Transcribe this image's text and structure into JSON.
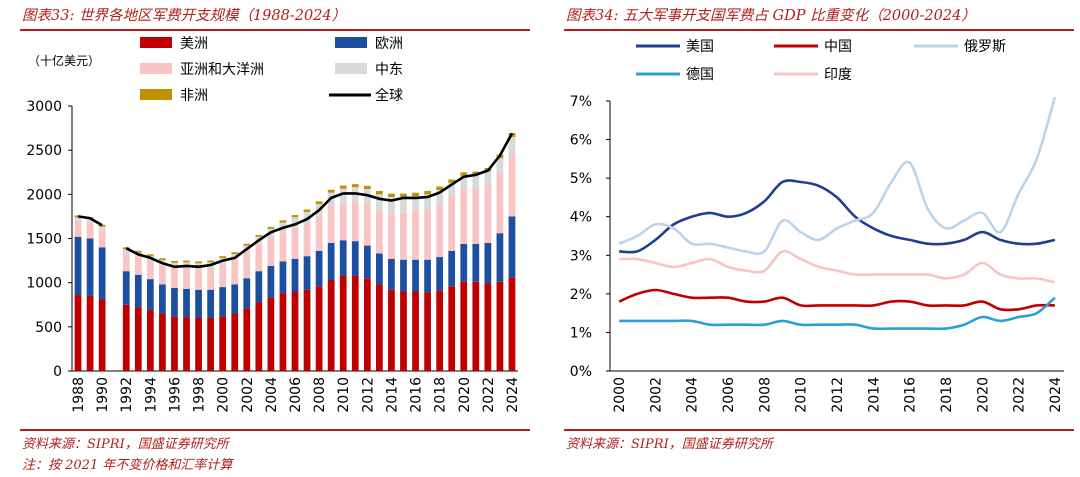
{
  "left": {
    "title": "图表33: 世界各地区军费开支规模（1988-2024）",
    "source": "资料来源：SIPRI，国盛证券研究所",
    "note": "注：按 2021 年不变价格和汇率计算"
  },
  "right": {
    "title": "图表34: 五大军事开支国军费占 GDP 比重变化（2000-2024）",
    "source": "资料来源：SIPRI，国盛证券研究所"
  },
  "colors": {
    "accent": "#b0201a",
    "americas": "#c00000",
    "europe": "#1c4fa0",
    "asia": "#f8c4c4",
    "middle_east": "#d9d9d9",
    "africa": "#bf9000",
    "world": "#000000",
    "usa": "#1f3f8f",
    "china": "#c00000",
    "russia": "#bcd4ea",
    "germany": "#2e9fd6",
    "india": "#f8c4c4"
  },
  "chart_data": [
    {
      "type": "bar",
      "stacked": true,
      "unit_label": "（十亿美元）",
      "ylim": [
        0,
        3000
      ],
      "yticks": [
        0,
        500,
        1000,
        1500,
        2000,
        2500,
        3000
      ],
      "categories": [
        1988,
        1989,
        1990,
        1991,
        1992,
        1993,
        1994,
        1995,
        1996,
        1997,
        1998,
        1999,
        2000,
        2001,
        2002,
        2003,
        2004,
        2005,
        2006,
        2007,
        2008,
        2009,
        2010,
        2011,
        2012,
        2013,
        2014,
        2015,
        2016,
        2017,
        2018,
        2019,
        2020,
        2021,
        2022,
        2023,
        2024
      ],
      "xtick_labels": [
        "1988",
        "1990",
        "1992",
        "1994",
        "1996",
        "1998",
        "2000",
        "2002",
        "2004",
        "2006",
        "2008",
        "2010",
        "2012",
        "2014",
        "2016",
        "2018",
        "2020",
        "2022",
        "2024"
      ],
      "series": [
        {
          "name": "美洲",
          "color_key": "americas",
          "values": [
            860,
            850,
            810,
            null,
            750,
            720,
            690,
            650,
            620,
            610,
            600,
            600,
            620,
            650,
            710,
            780,
            830,
            880,
            900,
            920,
            960,
            1030,
            1080,
            1080,
            1050,
            980,
            920,
            900,
            900,
            890,
            910,
            960,
            1010,
            1010,
            990,
            1010,
            1060
          ]
        },
        {
          "name": "欧洲",
          "color_key": "europe",
          "values": [
            660,
            650,
            590,
            null,
            380,
            370,
            350,
            330,
            320,
            320,
            320,
            320,
            330,
            330,
            340,
            350,
            360,
            360,
            370,
            380,
            400,
            420,
            400,
            390,
            370,
            350,
            350,
            360,
            360,
            370,
            380,
            400,
            430,
            430,
            460,
            550,
            690
          ]
        },
        {
          "name": "亚洲和大洋洲",
          "color_key": "asia",
          "values": [
            180,
            180,
            190,
            null,
            200,
            200,
            210,
            220,
            230,
            240,
            240,
            250,
            260,
            270,
            290,
            300,
            320,
            330,
            350,
            370,
            390,
            420,
            430,
            450,
            470,
            490,
            510,
            530,
            550,
            570,
            590,
            610,
            620,
            630,
            650,
            680,
            700
          ]
        },
        {
          "name": "中东",
          "color_key": "middle_east",
          "values": [
            40,
            40,
            45,
            null,
            50,
            50,
            50,
            55,
            55,
            60,
            60,
            60,
            70,
            75,
            80,
            90,
            100,
            110,
            120,
            130,
            140,
            150,
            155,
            160,
            170,
            180,
            190,
            180,
            170,
            170,
            170,
            160,
            150,
            150,
            160,
            170,
            200
          ]
        },
        {
          "name": "非洲",
          "color_key": "africa",
          "values": [
            20,
            20,
            20,
            null,
            20,
            20,
            20,
            20,
            20,
            20,
            20,
            20,
            20,
            20,
            20,
            20,
            22,
            25,
            25,
            28,
            30,
            32,
            34,
            35,
            36,
            38,
            38,
            38,
            38,
            38,
            38,
            38,
            38,
            38,
            38,
            40,
            45
          ]
        },
        {
          "name": "全球",
          "type": "line",
          "color_key": "world",
          "values": [
            1750,
            1730,
            1650,
            null,
            1390,
            1320,
            1280,
            1220,
            1180,
            1190,
            1180,
            1200,
            1250,
            1280,
            1380,
            1480,
            1570,
            1620,
            1660,
            1720,
            1820,
            1960,
            2010,
            2010,
            1990,
            1950,
            1930,
            1960,
            1960,
            1970,
            2020,
            2110,
            2200,
            2220,
            2270,
            2440,
            2690
          ]
        }
      ]
    },
    {
      "type": "line",
      "ylim": [
        0,
        7
      ],
      "yticks": [
        "0%",
        "1%",
        "2%",
        "3%",
        "4%",
        "5%",
        "6%",
        "7%"
      ],
      "x": [
        2000,
        2001,
        2002,
        2003,
        2004,
        2005,
        2006,
        2007,
        2008,
        2009,
        2010,
        2011,
        2012,
        2013,
        2014,
        2015,
        2016,
        2017,
        2018,
        2019,
        2020,
        2021,
        2022,
        2023,
        2024
      ],
      "xtick_labels": [
        "2000",
        "2002",
        "2004",
        "2006",
        "2008",
        "2010",
        "2012",
        "2014",
        "2016",
        "2018",
        "2020",
        "2022",
        "2024"
      ],
      "series": [
        {
          "name": "美国",
          "color_key": "usa",
          "values": [
            3.1,
            3.1,
            3.4,
            3.8,
            4.0,
            4.1,
            4.0,
            4.1,
            4.4,
            4.9,
            4.9,
            4.8,
            4.5,
            4.0,
            3.7,
            3.5,
            3.4,
            3.3,
            3.3,
            3.4,
            3.6,
            3.4,
            3.3,
            3.3,
            3.4
          ]
        },
        {
          "name": "中国",
          "color_key": "china",
          "values": [
            1.8,
            2.0,
            2.1,
            2.0,
            1.9,
            1.9,
            1.9,
            1.8,
            1.8,
            1.9,
            1.7,
            1.7,
            1.7,
            1.7,
            1.7,
            1.8,
            1.8,
            1.7,
            1.7,
            1.7,
            1.8,
            1.6,
            1.6,
            1.7,
            1.7
          ]
        },
        {
          "name": "俄罗斯",
          "color_key": "russia",
          "values": [
            3.3,
            3.5,
            3.8,
            3.7,
            3.3,
            3.3,
            3.2,
            3.1,
            3.1,
            3.9,
            3.6,
            3.4,
            3.7,
            3.9,
            4.1,
            4.9,
            5.4,
            4.2,
            3.7,
            3.9,
            4.1,
            3.6,
            4.6,
            5.5,
            7.1
          ]
        },
        {
          "name": "德国",
          "color_key": "germany",
          "values": [
            1.3,
            1.3,
            1.3,
            1.3,
            1.3,
            1.2,
            1.2,
            1.2,
            1.2,
            1.3,
            1.2,
            1.2,
            1.2,
            1.2,
            1.1,
            1.1,
            1.1,
            1.1,
            1.1,
            1.2,
            1.4,
            1.3,
            1.4,
            1.5,
            1.9
          ]
        },
        {
          "name": "印度",
          "color_key": "india",
          "values": [
            2.9,
            2.9,
            2.8,
            2.7,
            2.8,
            2.9,
            2.7,
            2.6,
            2.6,
            3.1,
            2.9,
            2.7,
            2.6,
            2.5,
            2.5,
            2.5,
            2.5,
            2.5,
            2.4,
            2.5,
            2.8,
            2.5,
            2.4,
            2.4,
            2.3
          ]
        }
      ]
    }
  ]
}
